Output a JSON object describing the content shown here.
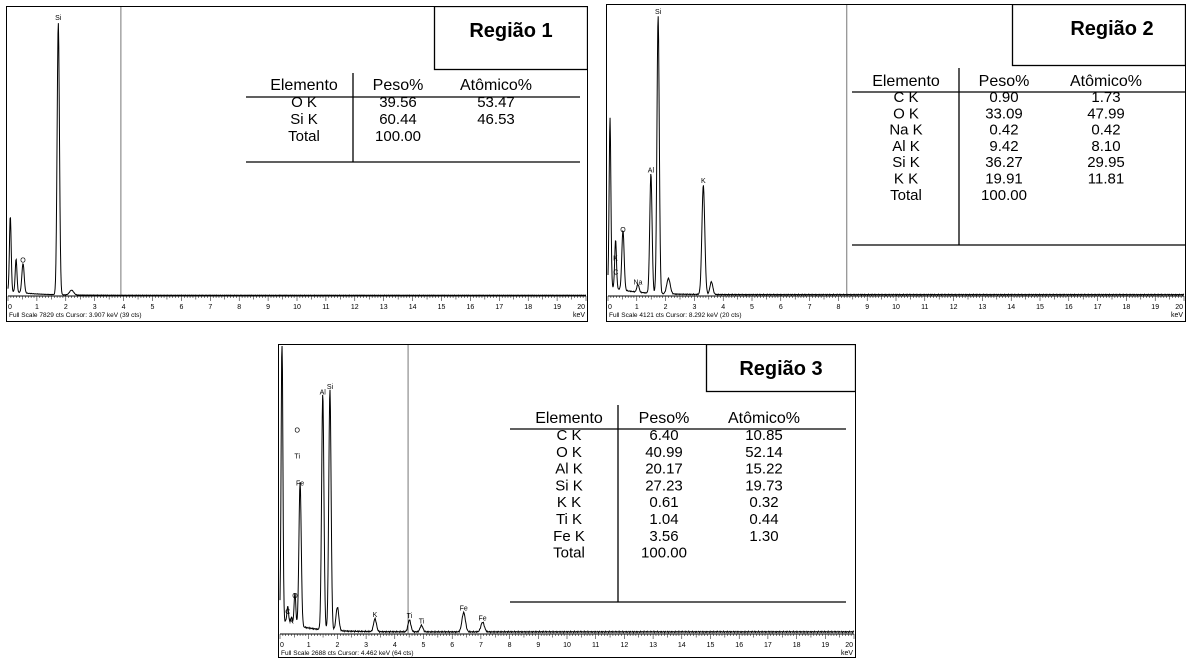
{
  "chart_data": [
    {
      "type": "line",
      "title": "Região 1",
      "x_unit": "keV",
      "xlim": [
        0,
        20
      ],
      "x_ticks": [
        "0",
        "1",
        "2",
        "3",
        "4",
        "5",
        "6",
        "7",
        "8",
        "9",
        "10",
        "11",
        "12",
        "13",
        "14",
        "15",
        "16",
        "17",
        "18",
        "19",
        "20"
      ],
      "footer": "Full Scale 7829 cts  Cursor: 3.907 keV (39 cts)",
      "cursor_kev": 3.907,
      "full_scale": 7829,
      "noise_counts": 20,
      "peaks": [
        {
          "label": "",
          "x": 0.08,
          "y": 2050,
          "w": 0.03
        },
        {
          "label": "",
          "x": 0.28,
          "y": 900,
          "w": 0.03
        },
        {
          "label": "O",
          "x": 0.52,
          "y": 800,
          "w": 0.04
        },
        {
          "label": "Si",
          "x": 1.74,
          "y": 7400,
          "w": 0.04
        },
        {
          "label": "",
          "x": 2.2,
          "y": 130,
          "w": 0.07
        }
      ],
      "table": {
        "headers": [
          "Elemento",
          "Peso%",
          "Atômico%"
        ],
        "rows": [
          [
            "O K",
            "39.56",
            "53.47"
          ],
          [
            "Si K",
            "60.44",
            "46.53"
          ],
          [
            "Total",
            "100.00",
            ""
          ]
        ]
      }
    },
    {
      "type": "line",
      "title": "Região 2",
      "x_unit": "keV",
      "xlim": [
        0,
        20
      ],
      "x_ticks": [
        "0",
        "1",
        "2",
        "3",
        "4",
        "5",
        "6",
        "7",
        "8",
        "9",
        "10",
        "11",
        "12",
        "13",
        "14",
        "15",
        "16",
        "17",
        "18",
        "19",
        "20"
      ],
      "footer": "Full Scale 4121 cts  Cursor: 8.292 keV (20 cts)",
      "cursor_kev": 8.292,
      "full_scale": 4121,
      "noise_counts": 20,
      "peaks": [
        {
          "label": "",
          "x": 0.07,
          "y": 2400,
          "w": 0.03
        },
        {
          "label": "C",
          "x": 0.27,
          "y": 250,
          "w": 0.03
        },
        {
          "label": "K",
          "x": 0.26,
          "y": 450,
          "w": 0.03
        },
        {
          "label": "O",
          "x": 0.52,
          "y": 850,
          "w": 0.04
        },
        {
          "label": "Na",
          "x": 1.04,
          "y": 110,
          "w": 0.04
        },
        {
          "label": "Al",
          "x": 1.49,
          "y": 1700,
          "w": 0.04
        },
        {
          "label": "Si",
          "x": 1.74,
          "y": 3950,
          "w": 0.04
        },
        {
          "label": "",
          "x": 2.1,
          "y": 220,
          "w": 0.06
        },
        {
          "label": "K",
          "x": 3.31,
          "y": 1550,
          "w": 0.05
        },
        {
          "label": "",
          "x": 3.59,
          "y": 180,
          "w": 0.05
        }
      ],
      "table": {
        "headers": [
          "Elemento",
          "Peso%",
          "Atômico%"
        ],
        "rows": [
          [
            "C K",
            "0.90",
            "1.73"
          ],
          [
            "O K",
            "33.09",
            "47.99"
          ],
          [
            "Na K",
            "0.42",
            "0.42"
          ],
          [
            "Al K",
            "9.42",
            "8.10"
          ],
          [
            "Si K",
            "36.27",
            "29.95"
          ],
          [
            "K K",
            "19.91",
            "11.81"
          ],
          [
            "Total",
            "100.00",
            ""
          ]
        ]
      }
    },
    {
      "type": "line",
      "title": "Região 3",
      "x_unit": "keV",
      "xlim": [
        0,
        20
      ],
      "x_ticks": [
        "0",
        "1",
        "2",
        "3",
        "4",
        "5",
        "6",
        "7",
        "8",
        "9",
        "10",
        "11",
        "12",
        "13",
        "14",
        "15",
        "16",
        "17",
        "18",
        "19",
        "20"
      ],
      "footer": "Full Scale 2688 cts  Cursor: 4.462 keV (64 cts)",
      "cursor_kev": 4.462,
      "full_scale": 2688,
      "noise_counts": 20,
      "peaks": [
        {
          "label": "",
          "x": 0.07,
          "y": 2680,
          "w": 0.03
        },
        {
          "label": "C",
          "x": 0.27,
          "y": 150,
          "w": 0.03
        },
        {
          "label": "K",
          "x": 0.4,
          "y": 60,
          "w": 0.03
        },
        {
          "label": "O",
          "x": 0.52,
          "y": 300,
          "w": 0.03
        },
        {
          "label": "Fe",
          "x": 0.7,
          "y": 1350,
          "w": 0.04
        },
        {
          "label": "Al",
          "x": 1.49,
          "y": 2200,
          "w": 0.04
        },
        {
          "label": "Si",
          "x": 1.74,
          "y": 2250,
          "w": 0.04
        },
        {
          "label": "",
          "x": 2.0,
          "y": 220,
          "w": 0.05
        },
        {
          "label": "K",
          "x": 3.31,
          "y": 120,
          "w": 0.05
        },
        {
          "label": "Ti",
          "x": 4.51,
          "y": 110,
          "w": 0.05
        },
        {
          "label": "Ti",
          "x": 4.93,
          "y": 60,
          "w": 0.05
        },
        {
          "label": "Fe",
          "x": 6.4,
          "y": 180,
          "w": 0.06
        },
        {
          "label": "Fe",
          "x": 7.06,
          "y": 90,
          "w": 0.06
        }
      ],
      "peak_labels_extra": [
        {
          "label": "O",
          "x": 0.6,
          "y": 1880
        },
        {
          "label": "Ti",
          "x": 0.6,
          "y": 1640
        }
      ],
      "table": {
        "headers": [
          "Elemento",
          "Peso%",
          "Atômico%"
        ],
        "rows": [
          [
            "C K",
            "6.40",
            "10.85"
          ],
          [
            "O K",
            "40.99",
            "52.14"
          ],
          [
            "Al K",
            "20.17",
            "15.22"
          ],
          [
            "Si K",
            "27.23",
            "19.73"
          ],
          [
            "K K",
            "0.61",
            "0.32"
          ],
          [
            "Ti K",
            "1.04",
            "0.44"
          ],
          [
            "Fe K",
            "3.56",
            "1.30"
          ],
          [
            "Total",
            "100.00",
            ""
          ]
        ]
      }
    }
  ]
}
